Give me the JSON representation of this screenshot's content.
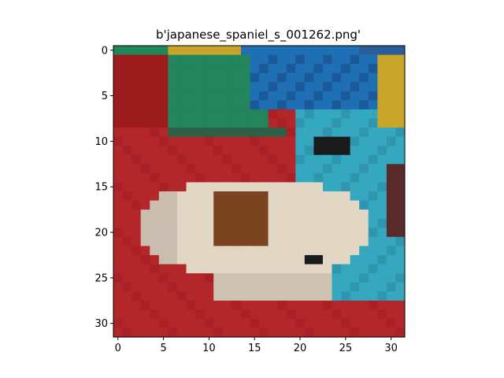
{
  "figure": {
    "title": "b'japanese_spaniel_s_001262.png'",
    "image_size": [
      32,
      32
    ],
    "xticks": [
      "0",
      "5",
      "10",
      "15",
      "20",
      "25",
      "30"
    ],
    "yticks": [
      "0",
      "5",
      "10",
      "15",
      "20",
      "25",
      "30"
    ],
    "xtick_values": [
      0,
      5,
      10,
      15,
      20,
      25,
      30
    ],
    "ytick_values": [
      0,
      5,
      10,
      15,
      20,
      25,
      30
    ]
  },
  "colors": {
    "red_bg": "#b3262a",
    "dark_red": "#9c1c1e",
    "green": "#23855c",
    "yellow": "#c9a42a",
    "blue": "#1f6fb5",
    "teal": "#35a8c0",
    "cream": "#e2d6c4",
    "brown": "#7a4420",
    "dark": "#1a1a1a"
  }
}
